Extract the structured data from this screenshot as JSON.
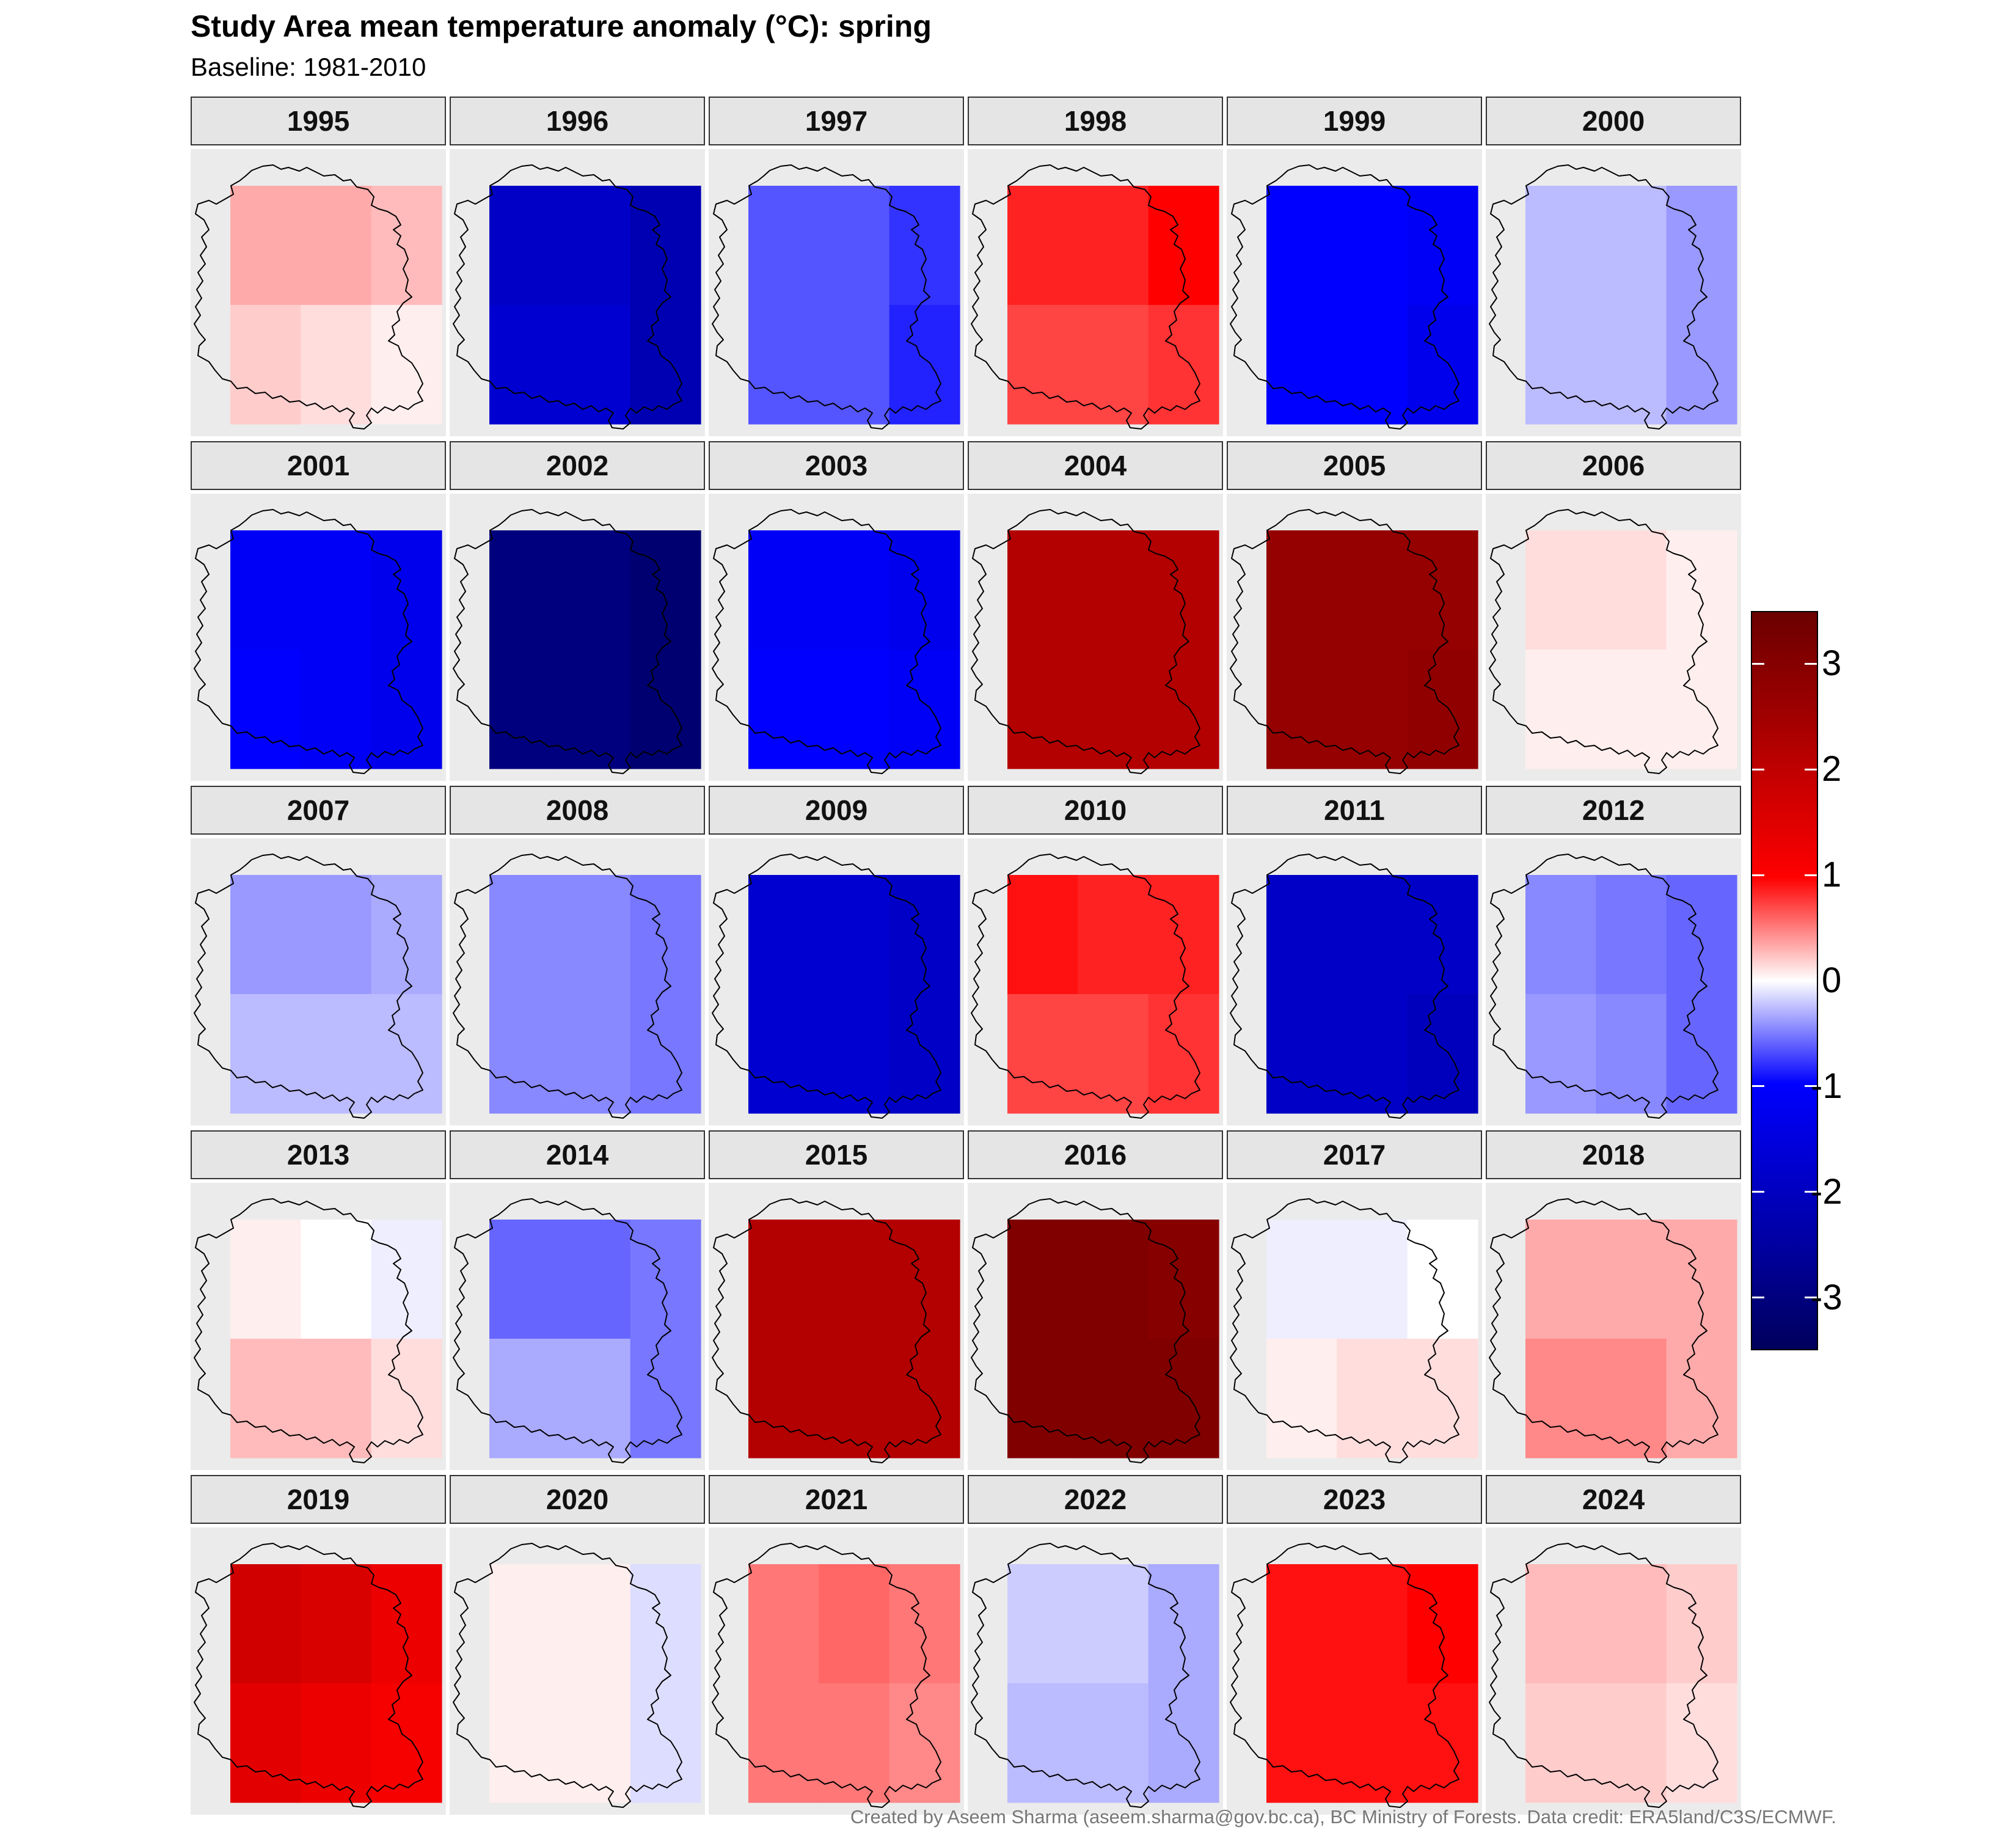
{
  "title": "Study Area mean temperature anomaly (°C): spring",
  "subtitle": "Baseline: 1981-2010",
  "caption": "Created by Aseem Sharma (aseem.sharma@gov.bc.ca), BC Ministry of Forests. Data credit: ERA5land/C3S/ECMWF.",
  "colors": {
    "warm_max": "#6b0000",
    "warm": "#ff0000",
    "neutral": "#ffffff",
    "cool": "#0000ff",
    "cool_max": "#00005c",
    "panel_bg": "#ebebeb",
    "strip_bg": "#e5e5e5"
  },
  "colorbar": {
    "ticks": [
      {
        "value": 3,
        "label": "3"
      },
      {
        "value": 2,
        "label": "2"
      },
      {
        "value": 1,
        "label": "1"
      },
      {
        "value": 0,
        "label": "0"
      },
      {
        "value": -1,
        "label": "-1"
      },
      {
        "value": -2,
        "label": "-2"
      },
      {
        "value": -3,
        "label": "-3"
      }
    ]
  },
  "chart_data": {
    "type": "heatmap",
    "title": "Study Area mean temperature anomaly (°C): spring",
    "subtitle": "Baseline: 1981-2010",
    "value_range": [
      -3.5,
      3.5
    ],
    "facets": [
      {
        "year": "1995",
        "cells": [
          [
            0.5,
            0.5,
            0.4
          ],
          [
            0.3,
            0.2,
            0.1
          ]
        ]
      },
      {
        "year": "1996",
        "cells": [
          [
            -2.1,
            -2.1,
            -2.3
          ],
          [
            -2.0,
            -2.0,
            -2.3
          ]
        ]
      },
      {
        "year": "1997",
        "cells": [
          [
            -1.0,
            -1.0,
            -1.2
          ],
          [
            -1.0,
            -1.0,
            -1.3
          ]
        ]
      },
      {
        "year": "1998",
        "cells": [
          [
            1.3,
            1.3,
            1.5
          ],
          [
            1.1,
            1.1,
            1.2
          ]
        ]
      },
      {
        "year": "1999",
        "cells": [
          [
            -1.5,
            -1.5,
            -1.6
          ],
          [
            -1.5,
            -1.5,
            -1.7
          ]
        ]
      },
      {
        "year": "2000",
        "cells": [
          [
            -0.4,
            -0.4,
            -0.6
          ],
          [
            -0.4,
            -0.4,
            -0.6
          ]
        ]
      },
      {
        "year": "2001",
        "cells": [
          [
            -1.6,
            -1.6,
            -1.7
          ],
          [
            -1.5,
            -1.6,
            -1.7
          ]
        ]
      },
      {
        "year": "2002",
        "cells": [
          [
            -3.0,
            -3.0,
            -3.2
          ],
          [
            -3.0,
            -3.0,
            -3.2
          ]
        ]
      },
      {
        "year": "2003",
        "cells": [
          [
            -1.6,
            -1.6,
            -1.7
          ],
          [
            -1.5,
            -1.5,
            -1.6
          ]
        ]
      },
      {
        "year": "2004",
        "cells": [
          [
            2.3,
            2.3,
            2.3
          ],
          [
            2.3,
            2.3,
            2.3
          ]
        ]
      },
      {
        "year": "2005",
        "cells": [
          [
            2.7,
            2.7,
            2.7
          ],
          [
            2.7,
            2.7,
            2.8
          ]
        ]
      },
      {
        "year": "2006",
        "cells": [
          [
            0.2,
            0.2,
            0.1
          ],
          [
            0.1,
            0.1,
            0.1
          ]
        ]
      },
      {
        "year": "2007",
        "cells": [
          [
            -0.6,
            -0.6,
            -0.5
          ],
          [
            -0.4,
            -0.4,
            -0.4
          ]
        ]
      },
      {
        "year": "2008",
        "cells": [
          [
            -0.7,
            -0.7,
            -0.8
          ],
          [
            -0.7,
            -0.7,
            -0.8
          ]
        ]
      },
      {
        "year": "2009",
        "cells": [
          [
            -2.0,
            -2.0,
            -2.1
          ],
          [
            -2.0,
            -2.0,
            -2.1
          ]
        ]
      },
      {
        "year": "2010",
        "cells": [
          [
            1.4,
            1.3,
            1.3
          ],
          [
            1.1,
            1.1,
            1.2
          ]
        ]
      },
      {
        "year": "2011",
        "cells": [
          [
            -2.1,
            -2.1,
            -2.1
          ],
          [
            -2.1,
            -2.1,
            -2.2
          ]
        ]
      },
      {
        "year": "2012",
        "cells": [
          [
            -0.7,
            -0.8,
            -0.9
          ],
          [
            -0.6,
            -0.7,
            -0.9
          ]
        ]
      },
      {
        "year": "2013",
        "cells": [
          [
            0.1,
            0.0,
            -0.1
          ],
          [
            0.4,
            0.4,
            0.2
          ]
        ]
      },
      {
        "year": "2014",
        "cells": [
          [
            -0.9,
            -0.9,
            -0.8
          ],
          [
            -0.5,
            -0.5,
            -0.8
          ]
        ]
      },
      {
        "year": "2015",
        "cells": [
          [
            2.3,
            2.3,
            2.3
          ],
          [
            2.3,
            2.3,
            2.3
          ]
        ]
      },
      {
        "year": "2016",
        "cells": [
          [
            3.1,
            3.1,
            3.0
          ],
          [
            3.1,
            3.1,
            3.1
          ]
        ]
      },
      {
        "year": "2017",
        "cells": [
          [
            -0.1,
            -0.1,
            0.0
          ],
          [
            0.1,
            0.2,
            0.2
          ]
        ]
      },
      {
        "year": "2018",
        "cells": [
          [
            0.5,
            0.5,
            0.5
          ],
          [
            0.7,
            0.7,
            0.5
          ]
        ]
      },
      {
        "year": "2019",
        "cells": [
          [
            2.0,
            1.9,
            1.7
          ],
          [
            1.8,
            1.7,
            1.6
          ]
        ]
      },
      {
        "year": "2020",
        "cells": [
          [
            0.1,
            0.1,
            -0.2
          ],
          [
            0.1,
            0.1,
            -0.2
          ]
        ]
      },
      {
        "year": "2021",
        "cells": [
          [
            0.8,
            0.9,
            0.8
          ],
          [
            0.8,
            0.8,
            0.7
          ]
        ]
      },
      {
        "year": "2022",
        "cells": [
          [
            -0.3,
            -0.3,
            -0.5
          ],
          [
            -0.4,
            -0.4,
            -0.5
          ]
        ]
      },
      {
        "year": "2023",
        "cells": [
          [
            1.4,
            1.4,
            1.5
          ],
          [
            1.4,
            1.4,
            1.4
          ]
        ]
      },
      {
        "year": "2024",
        "cells": [
          [
            0.4,
            0.4,
            0.3
          ],
          [
            0.3,
            0.3,
            0.2
          ]
        ]
      }
    ]
  }
}
